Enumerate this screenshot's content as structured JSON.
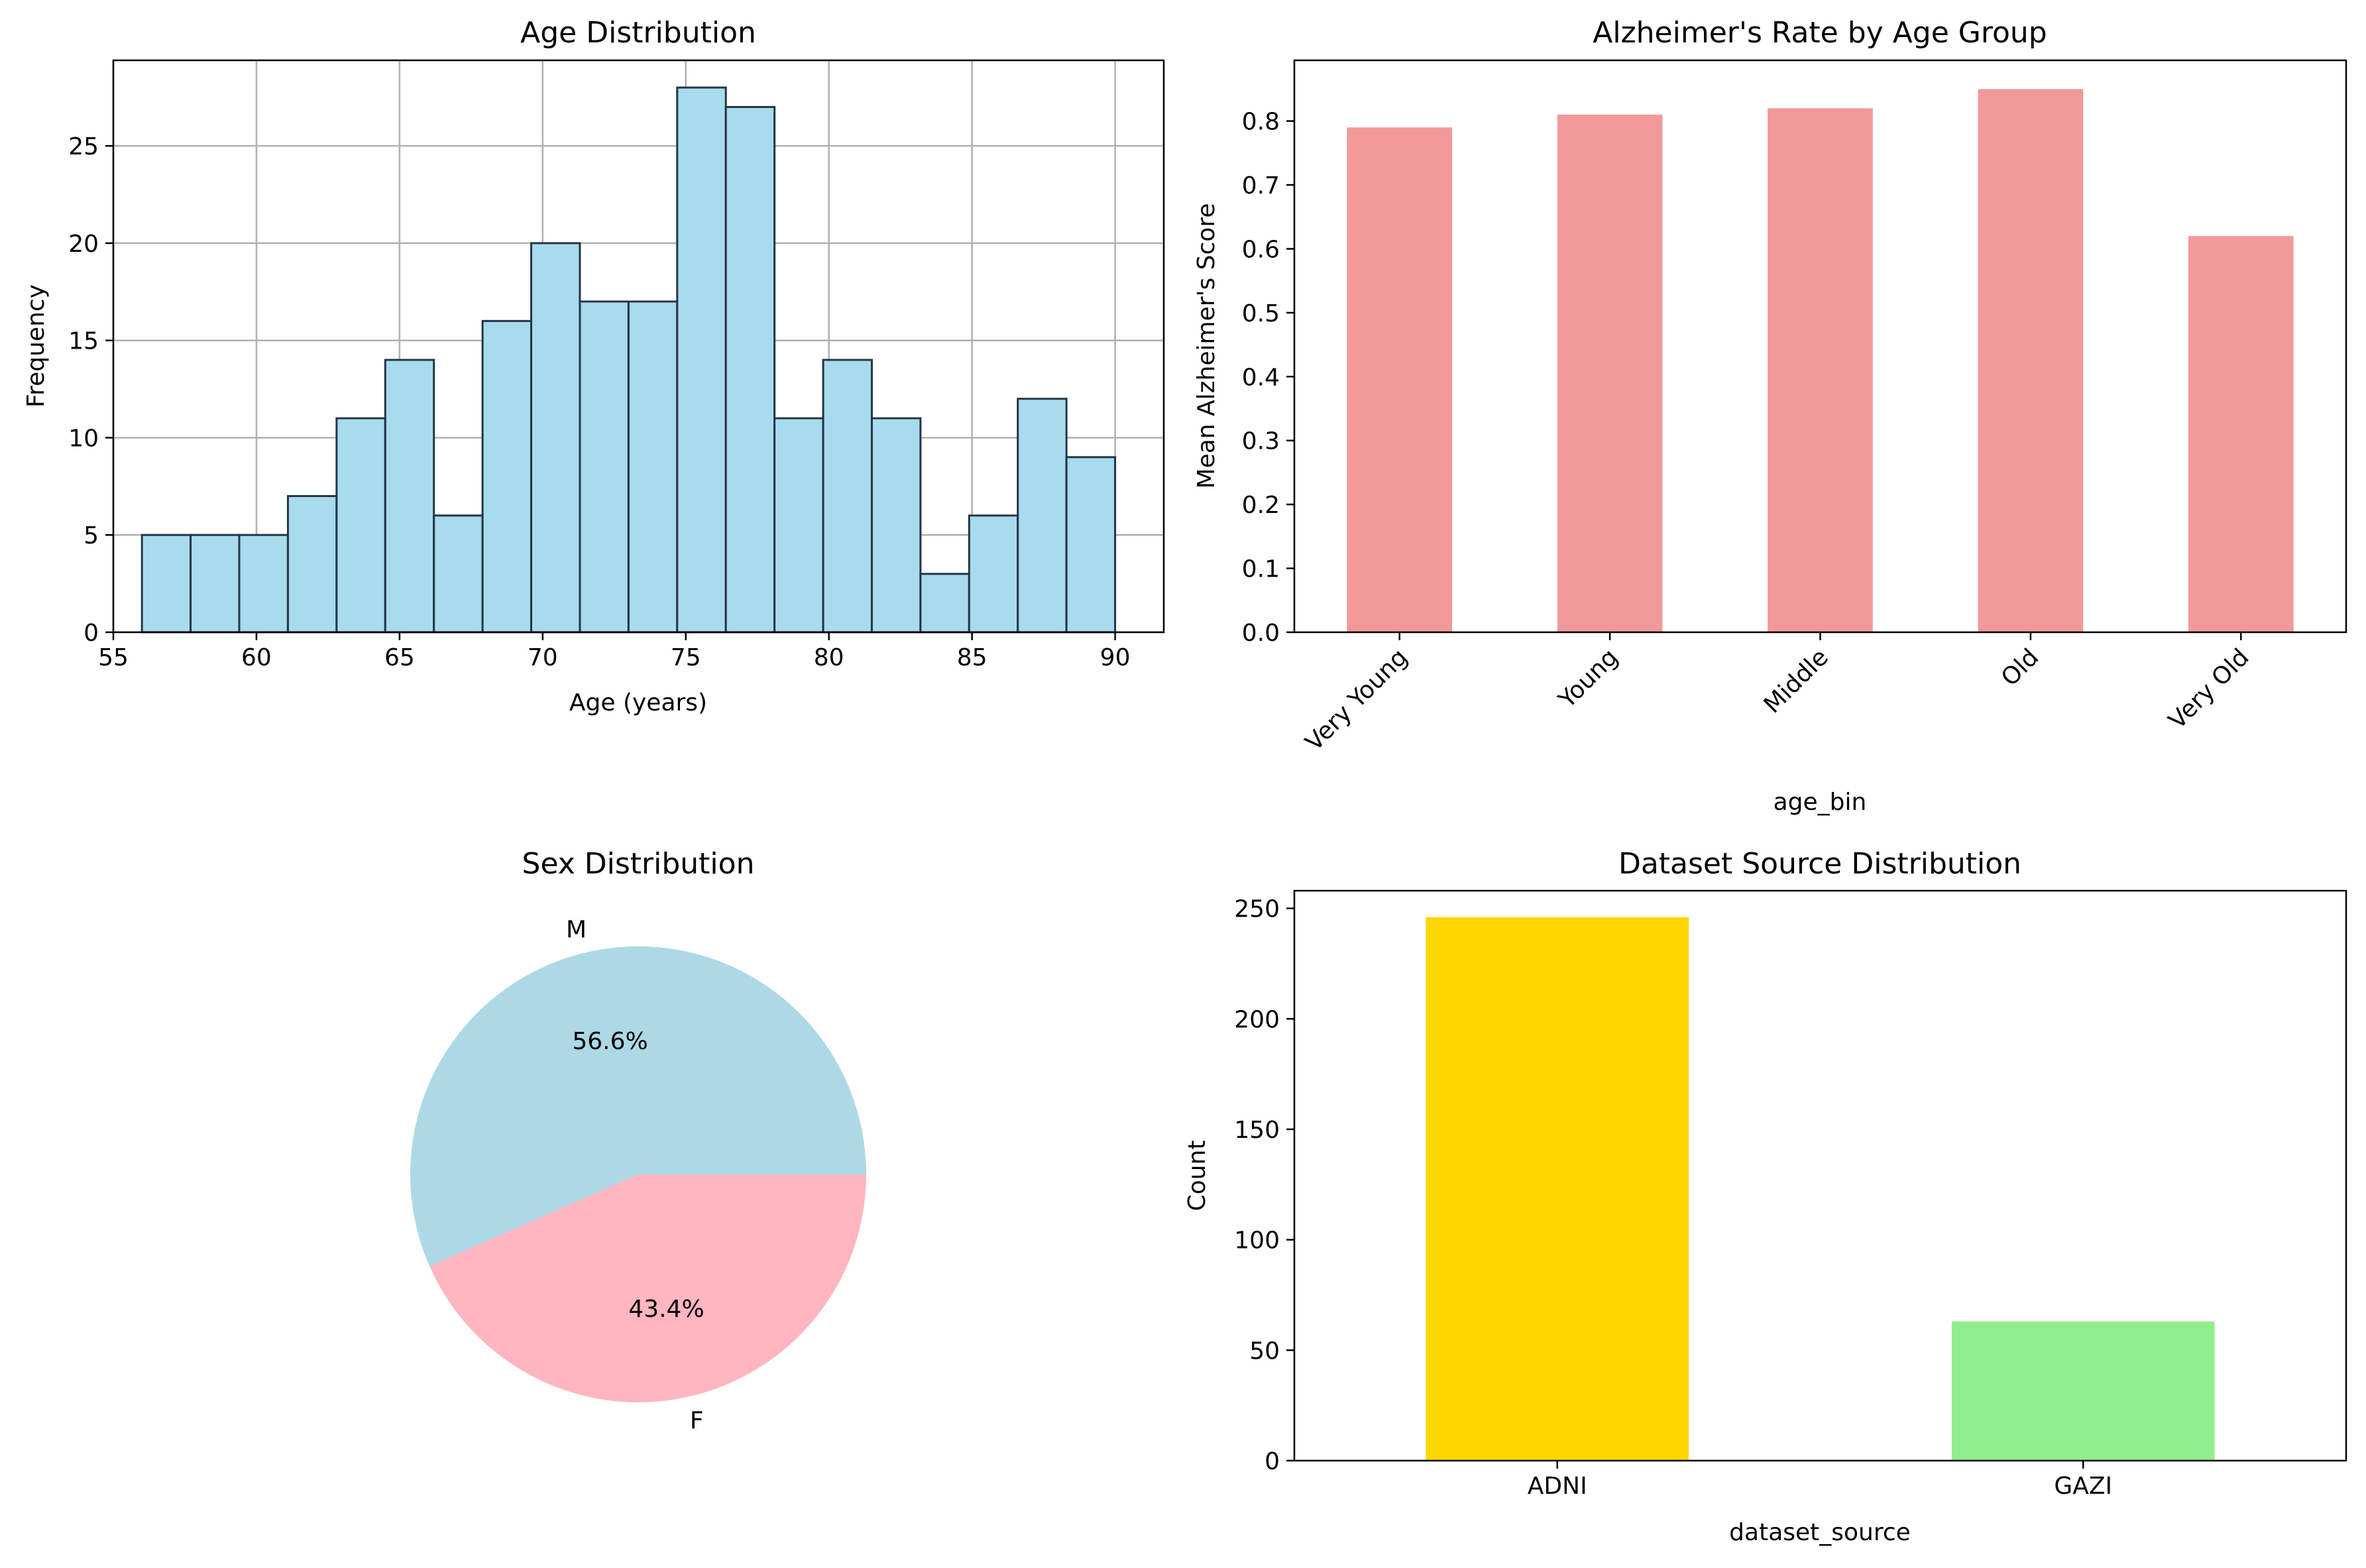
{
  "chart_data": [
    {
      "type": "bar",
      "chart_kind": "histogram",
      "title": "Age Distribution",
      "xlabel": "Age (years)",
      "ylabel": "Frequency",
      "xlim": [
        55,
        91.7
      ],
      "ylim": [
        0,
        29.4
      ],
      "xticks": [
        55,
        60,
        65,
        70,
        75,
        80,
        85,
        90
      ],
      "yticks": [
        0,
        5,
        10,
        15,
        20,
        25
      ],
      "grid": true,
      "color": "#a9dbef",
      "edge_color": "#253545",
      "bin_edges": [
        56,
        57.7,
        59.4,
        61.1,
        62.8,
        64.5,
        66.2,
        67.9,
        69.6,
        71.3,
        73.0,
        74.7,
        76.4,
        78.1,
        79.8,
        81.5,
        83.2,
        84.9,
        86.6,
        88.3,
        90.0
      ],
      "values": [
        5,
        5,
        5,
        7,
        11,
        14,
        6,
        16,
        20,
        17,
        17,
        28,
        27,
        11,
        14,
        11,
        3,
        6,
        12,
        9
      ]
    },
    {
      "type": "bar",
      "title": "Alzheimer's Rate by Age Group",
      "xlabel": "age_bin",
      "ylabel": "Mean Alzheimer's Score",
      "ylim": [
        0,
        0.895
      ],
      "yticks": [
        0.0,
        0.1,
        0.2,
        0.3,
        0.4,
        0.5,
        0.6,
        0.7,
        0.8
      ],
      "grid": false,
      "color": "#f29a99",
      "categories": [
        "Very Young",
        "Young",
        "Middle",
        "Old",
        "Very Old"
      ],
      "values": [
        0.79,
        0.81,
        0.82,
        0.85,
        0.62
      ]
    },
    {
      "type": "pie",
      "title": "Sex Distribution",
      "labels": [
        "M",
        "F"
      ],
      "values": [
        56.6,
        43.4
      ],
      "value_labels": [
        "56.6%",
        "43.4%"
      ],
      "colors": [
        "#add8e6",
        "#ffb6c1"
      ]
    },
    {
      "type": "bar",
      "title": "Dataset Source Distribution",
      "xlabel": "dataset_source",
      "ylabel": "Count",
      "ylim": [
        0,
        258
      ],
      "yticks": [
        0,
        50,
        100,
        150,
        200,
        250
      ],
      "grid": false,
      "categories": [
        "ADNI",
        "GAZI"
      ],
      "values": [
        246,
        63
      ],
      "colors": [
        "#ffd700",
        "#90ee90"
      ]
    }
  ]
}
